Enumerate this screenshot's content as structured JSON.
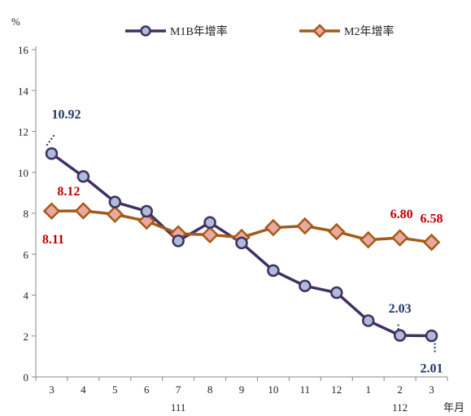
{
  "chart_data": {
    "type": "line",
    "y_unit": "%",
    "x_unit": "年月",
    "ylim": [
      0,
      16
    ],
    "y_ticks": [
      0,
      2,
      4,
      6,
      8,
      10,
      12,
      14,
      16
    ],
    "categories": [
      "3",
      "4",
      "5",
      "6",
      "7",
      "8",
      "9",
      "10",
      "11",
      "12",
      "1",
      "2",
      "3"
    ],
    "year_labels": [
      {
        "label": "111",
        "at_index": 4
      },
      {
        "label": "112",
        "at_index": 11
      }
    ],
    "grid": false,
    "legend_position": "top",
    "series": [
      {
        "name": "M1B年增率",
        "color": "#3f3163",
        "marker_fill": "#aebcd8",
        "marker": "circle",
        "values": [
          10.92,
          9.8,
          8.55,
          8.1,
          6.65,
          7.55,
          6.55,
          5.2,
          4.45,
          4.12,
          2.75,
          2.03,
          2.01
        ]
      },
      {
        "name": "M2年增率",
        "color": "#a45a18",
        "marker_fill": "#e8aaa0",
        "marker": "diamond",
        "values": [
          8.11,
          8.12,
          7.95,
          7.62,
          7.0,
          6.95,
          6.82,
          7.3,
          7.38,
          7.1,
          6.7,
          6.8,
          6.58
        ]
      }
    ],
    "annotations": [
      {
        "text": "10.92",
        "series": 0,
        "index": 0,
        "color": "#1f3864"
      },
      {
        "text": "2.03",
        "series": 0,
        "index": 11,
        "color": "#1f3864"
      },
      {
        "text": "2.01",
        "series": 0,
        "index": 12,
        "color": "#1f3864"
      },
      {
        "text": "8.11",
        "series": 1,
        "index": 0,
        "color": "#c00000"
      },
      {
        "text": "8.12",
        "series": 1,
        "index": 1,
        "color": "#c00000"
      },
      {
        "text": "6.80",
        "series": 1,
        "index": 11,
        "color": "#c00000"
      },
      {
        "text": "6.58",
        "series": 1,
        "index": 12,
        "color": "#c00000"
      }
    ]
  }
}
